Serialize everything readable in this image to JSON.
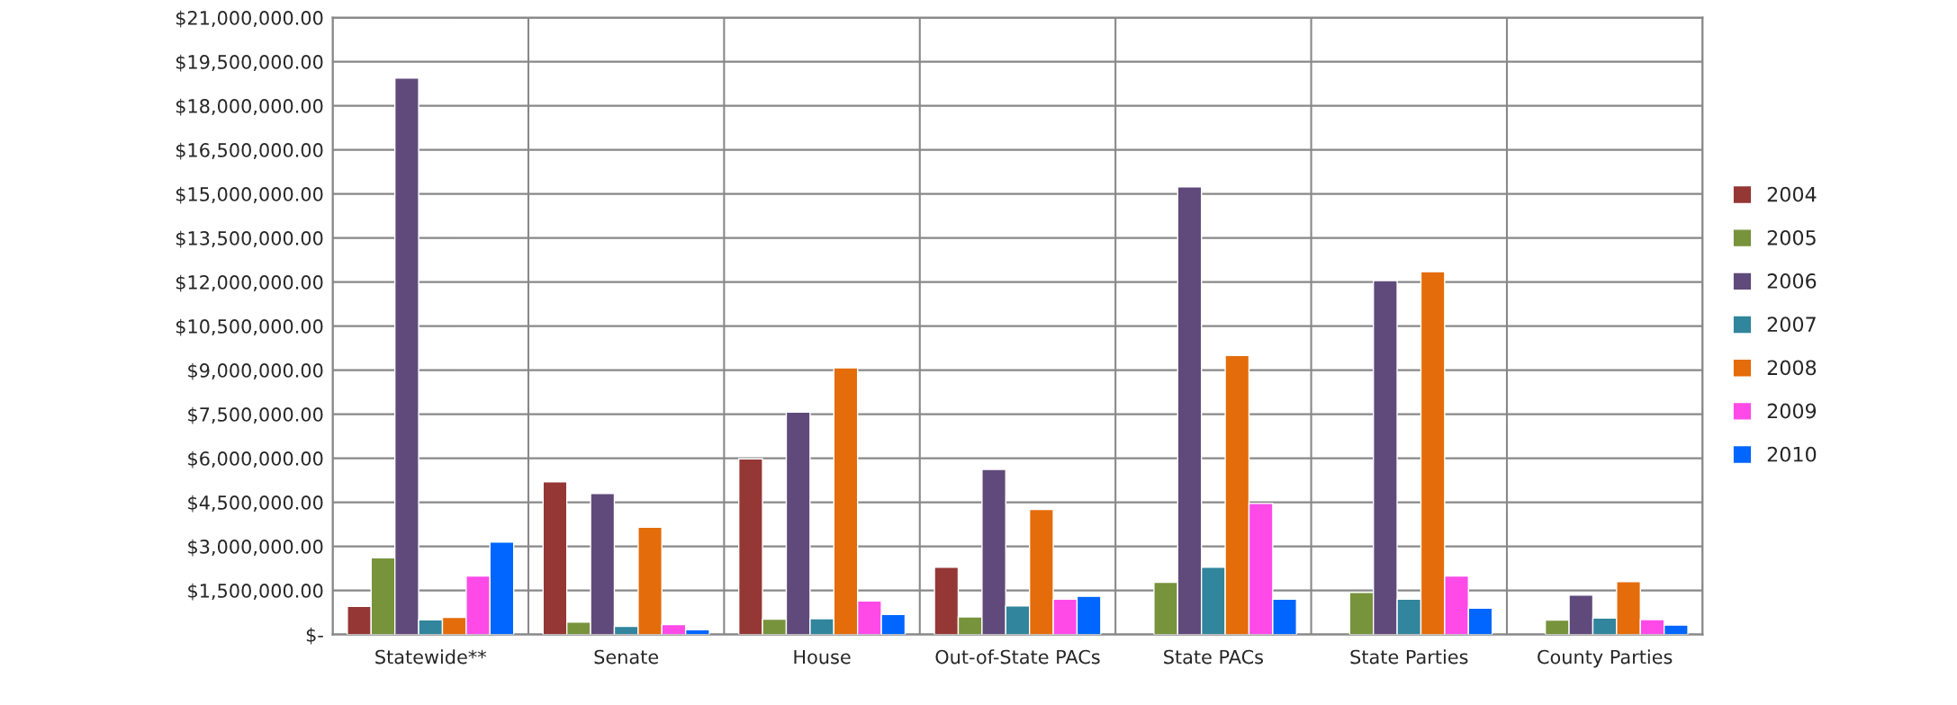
{
  "chart_data": {
    "type": "bar",
    "categories": [
      "Statewide**",
      "Senate",
      "House",
      "Out-of-State PACs",
      "State PACs",
      "State Parties",
      "County Parties"
    ],
    "series": [
      {
        "name": "2004",
        "color": "#953735",
        "values": [
          960000,
          5200000,
          5980000,
          2290000,
          null,
          null,
          null
        ]
      },
      {
        "name": "2005",
        "color": "#77933c",
        "values": [
          2610000,
          420000,
          520000,
          600000,
          1780000,
          1430000,
          490000
        ]
      },
      {
        "name": "2006",
        "color": "#604a7b",
        "values": [
          18940000,
          4800000,
          7570000,
          5620000,
          15240000,
          12050000,
          1340000
        ]
      },
      {
        "name": "2007",
        "color": "#31859c",
        "values": [
          500000,
          280000,
          540000,
          970000,
          2290000,
          1200000,
          560000
        ]
      },
      {
        "name": "2008",
        "color": "#e46c0a",
        "values": [
          580000,
          3650000,
          9080000,
          4260000,
          9500000,
          12350000,
          1800000
        ]
      },
      {
        "name": "2009",
        "color": "#ff4ae8",
        "values": [
          1990000,
          340000,
          1140000,
          1200000,
          4460000,
          1990000,
          510000
        ]
      },
      {
        "name": "2010",
        "color": "#0066ff",
        "values": [
          3150000,
          160000,
          680000,
          1300000,
          1200000,
          900000,
          320000
        ]
      }
    ],
    "ylim": [
      0,
      21000000
    ],
    "yticks": [
      {
        "value": 0,
        "label": "$-"
      },
      {
        "value": 1500000,
        "label": "$1,500,000.00"
      },
      {
        "value": 3000000,
        "label": "$3,000,000.00"
      },
      {
        "value": 4500000,
        "label": "$4,500,000.00"
      },
      {
        "value": 6000000,
        "label": "$6,000,000.00"
      },
      {
        "value": 7500000,
        "label": "$7,500,000.00"
      },
      {
        "value": 9000000,
        "label": "$9,000,000.00"
      },
      {
        "value": 10500000,
        "label": "$10,500,000.00"
      },
      {
        "value": 12000000,
        "label": "$12,000,000.00"
      },
      {
        "value": 13500000,
        "label": "$13,500,000.00"
      },
      {
        "value": 15000000,
        "label": "$15,000,000.00"
      },
      {
        "value": 16500000,
        "label": "$16,500,000.00"
      },
      {
        "value": 18000000,
        "label": "$18,000,000.00"
      },
      {
        "value": 19500000,
        "label": "$19,500,000.00"
      },
      {
        "value": 21000000,
        "label": "$21,000,000.00"
      }
    ],
    "grid": true,
    "legend": "right"
  }
}
